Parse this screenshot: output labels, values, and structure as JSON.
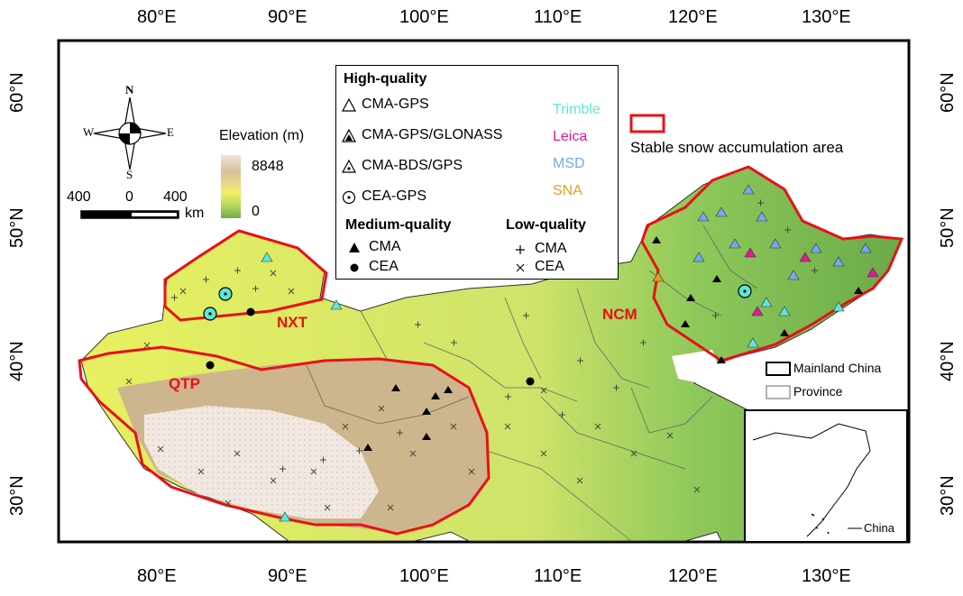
{
  "axes": {
    "longitude_ticks": [
      "80°E",
      "90°E",
      "100°E",
      "110°E",
      "120°E",
      "130°E"
    ],
    "latitude_ticks": [
      "60°N",
      "50°N",
      "40°N",
      "30°N"
    ]
  },
  "compass": {
    "n": "N",
    "s": "S",
    "e": "E",
    "w": "W"
  },
  "elevation": {
    "title": "Elevation (m)",
    "max": "8848",
    "min": "0"
  },
  "scale_bar": {
    "left": "400",
    "mid": "0",
    "right": "400",
    "unit": "km"
  },
  "legend": {
    "high_title": "High-quality",
    "high_items": [
      "CMA-GPS",
      "CMA-GPS/GLONASS",
      "CMA-BDS/GPS",
      "CEA-GPS"
    ],
    "brands": [
      {
        "label": "Trimble",
        "color": "#5ee6d8"
      },
      {
        "label": "Leica",
        "color": "#e0189a"
      },
      {
        "label": "MSD",
        "color": "#73a9f0"
      },
      {
        "label": "SNA",
        "color": "#e0a020"
      }
    ],
    "medium_title": "Medium-quality",
    "medium_items": [
      "CMA",
      "CEA"
    ],
    "low_title": "Low-quality",
    "low_items": [
      "CMA",
      "CEA"
    ]
  },
  "snow_area_label": "Stable snow accumulation area",
  "snow_area_color": "#e8101a",
  "regions": {
    "nxt": "NXT",
    "qtp": "QTP",
    "ncm": "NCM"
  },
  "boundary_legend": {
    "mainland": "Mainland China",
    "province": "Province"
  },
  "inset_label": "China"
}
